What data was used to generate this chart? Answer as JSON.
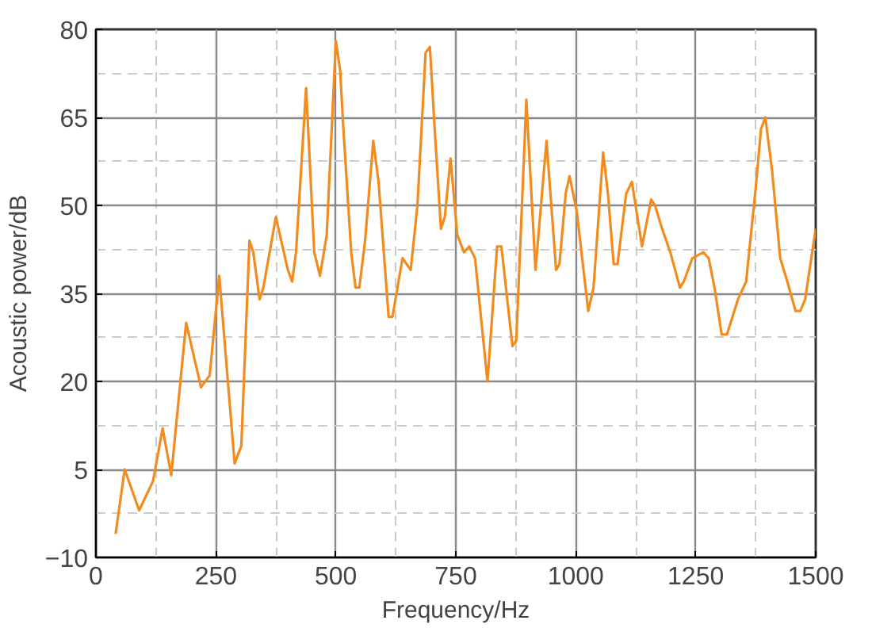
{
  "chart_data": {
    "type": "line",
    "xlabel": "Frequency/Hz",
    "ylabel": "Acoustic power/dB",
    "xlim": [
      0,
      1500
    ],
    "ylim": [
      -10,
      80
    ],
    "xticks": [
      0,
      250,
      500,
      750,
      1000,
      1250,
      1500
    ],
    "yticks": [
      -10,
      5,
      20,
      35,
      50,
      65,
      80
    ],
    "grid": true,
    "marker": "none",
    "line_style": "solid",
    "series": [
      {
        "color": "#f28c1e",
        "x": [
          41,
          60,
          90,
          119,
          139,
          157,
          188,
          219,
          237,
          257,
          289,
          303,
          320,
          328,
          341,
          349,
          375,
          400,
          409,
          417,
          438,
          455,
          467,
          481,
          500,
          509,
          515,
          532,
          541,
          549,
          561,
          578,
          589,
          610,
          618,
          639,
          656,
          670,
          687,
          696,
          706,
          719,
          727,
          739,
          753,
          767,
          778,
          790,
          816,
          836,
          845,
          868,
          876,
          897,
          916,
          939,
          959,
          966,
          979,
          987,
          1002,
          1026,
          1037,
          1057,
          1067,
          1079,
          1087,
          1105,
          1117,
          1138,
          1157,
          1165,
          1180,
          1197,
          1217,
          1225,
          1243,
          1266,
          1277,
          1289,
          1304,
          1315,
          1338,
          1355,
          1375,
          1386,
          1395,
          1409,
          1426,
          1441,
          1458,
          1468,
          1478,
          1500
        ],
        "values": [
          -6,
          5,
          -2,
          3,
          12,
          4,
          30,
          19,
          21,
          38,
          6,
          9,
          44,
          42,
          34,
          36,
          48,
          39,
          37,
          42,
          70,
          42,
          38,
          45,
          78,
          73,
          64,
          42,
          36,
          36,
          44,
          61,
          54,
          31,
          31,
          41,
          39,
          50,
          76,
          77,
          63,
          46,
          48,
          58,
          45,
          42,
          43,
          41,
          20,
          43,
          43,
          26,
          27,
          68,
          39,
          61,
          39,
          40,
          52,
          55,
          49,
          32,
          36,
          59,
          52,
          40,
          40,
          52,
          54,
          43,
          51,
          50,
          46,
          42,
          36,
          37,
          41,
          42,
          41,
          36,
          28,
          28,
          34,
          37,
          53,
          63,
          65,
          56,
          41,
          37,
          32,
          32,
          34,
          46
        ]
      }
    ]
  }
}
